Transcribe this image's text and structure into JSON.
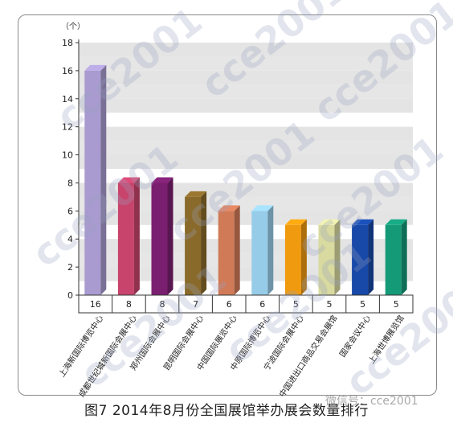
{
  "chart_data": {
    "type": "bar",
    "unit_label": "（个）",
    "categories": [
      "上海新国际博览中心",
      "成都世纪城新国际会展中心",
      "郑州国际会展中心",
      "昆明国际会展中心",
      "中国国际展览中心",
      "中原国际博览中心",
      "宁波国际会展中心",
      "中国进出口商品交易会展馆",
      "国家会议中心",
      "上海世博展览馆"
    ],
    "values": [
      16,
      8,
      8,
      7,
      6,
      6,
      5,
      5,
      5,
      5
    ],
    "value_labels": [
      "16",
      "8",
      "8",
      "7",
      "6",
      "6",
      "5",
      "5",
      "5",
      "5"
    ],
    "colors": [
      "#a99bd0",
      "#c8446c",
      "#7a1f70",
      "#8a6a2a",
      "#d07a58",
      "#96cce8",
      "#f09a10",
      "#d8daa0",
      "#1848a8",
      "#159a78"
    ],
    "yticks": [
      "0",
      "2",
      "4",
      "6",
      "8",
      "10",
      "12",
      "14",
      "16",
      "18"
    ],
    "ylim": [
      0,
      18
    ],
    "grid": "alternating-bands"
  },
  "caption": "图7 2014年8月份全国展馆举办展会数量排行",
  "watermark": {
    "text": "cce2001",
    "wechat": "微信号：cce2001"
  }
}
